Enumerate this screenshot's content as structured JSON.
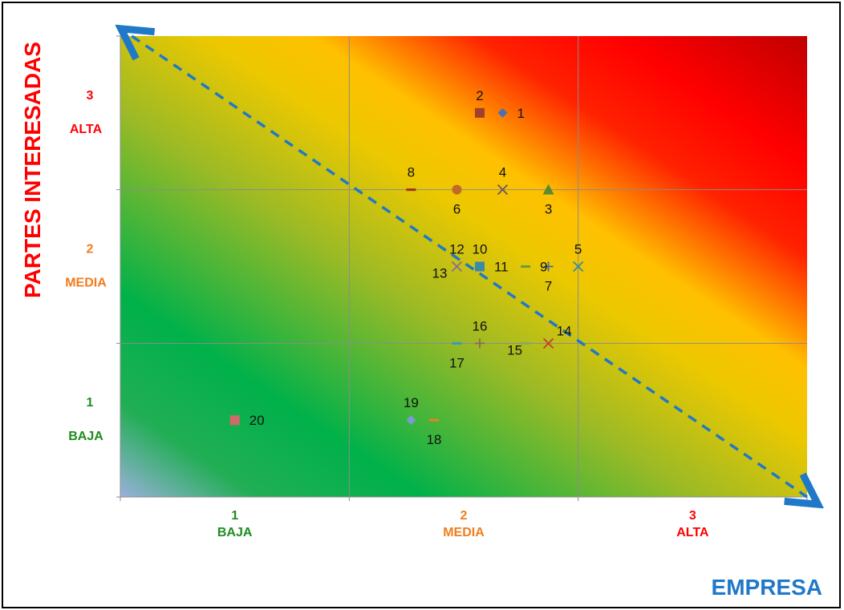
{
  "chart_data": {
    "type": "scatter",
    "title": "",
    "xlabel": "EMPRESA",
    "ylabel": "PARTES INTERESADAS",
    "xlim": [
      0.5,
      3.5
    ],
    "ylim": [
      0.5,
      3.5
    ],
    "grid": true,
    "x_ticks": [
      {
        "value": 1,
        "num": "1",
        "word": "BAJA",
        "color": "#1e8c1e"
      },
      {
        "value": 2,
        "num": "2",
        "word": "MEDIA",
        "color": "#f07d1e"
      },
      {
        "value": 3,
        "num": "3",
        "word": "ALTA",
        "color": "#ff0000"
      }
    ],
    "y_ticks": [
      {
        "value": 1,
        "num": "1",
        "word": "BAJA",
        "color": "#1e8c1e"
      },
      {
        "value": 2,
        "num": "2",
        "word": "MEDIA",
        "color": "#f07d1e"
      },
      {
        "value": 3,
        "num": "3",
        "word": "ALTA",
        "color": "#ff0000"
      }
    ],
    "xlabel_color": "#1f78c8",
    "ylabel_color": "#ff0000",
    "background": "gradient green (low) to red (high)",
    "trend_line": {
      "style": "dashed",
      "color": "#1f78c8",
      "from": [
        0.55,
        3.5
      ],
      "to": [
        3.5,
        0.5
      ]
    },
    "points": [
      {
        "label": "1",
        "x": 2.17,
        "y": 3.0,
        "marker": "diamond",
        "color": "#4a72b0",
        "label_pos": "right"
      },
      {
        "label": "2",
        "x": 2.07,
        "y": 3.0,
        "marker": "square",
        "color": "#a0402a",
        "label_pos": "above"
      },
      {
        "label": "3",
        "x": 2.37,
        "y": 2.5,
        "marker": "triangle",
        "color": "#5a8a30",
        "label_pos": "below"
      },
      {
        "label": "4",
        "x": 2.17,
        "y": 2.5,
        "marker": "x",
        "color": "#6a5a5a",
        "label_pos": "above"
      },
      {
        "label": "5",
        "x": 2.5,
        "y": 2.0,
        "marker": "x",
        "color": "#3a8aa0",
        "label_pos": "above"
      },
      {
        "label": "6",
        "x": 1.97,
        "y": 2.5,
        "marker": "circle",
        "color": "#c06a28",
        "label_pos": "below"
      },
      {
        "label": "7",
        "x": 2.37,
        "y": 2.0,
        "marker": "plus",
        "color": "#4a6aa0",
        "label_pos": "below"
      },
      {
        "label": "8",
        "x": 1.77,
        "y": 2.5,
        "marker": "dash",
        "color": "#a03020",
        "label_pos": "above"
      },
      {
        "label": "9",
        "x": 2.27,
        "y": 2.0,
        "marker": "dash",
        "color": "#6a9a40",
        "label_pos": "right"
      },
      {
        "label": "10",
        "x": 2.07,
        "y": 2.0,
        "marker": "square",
        "color": "#3a8aaa",
        "label_pos": "above"
      },
      {
        "label": "11",
        "x": 2.07,
        "y": 2.0,
        "marker": "none",
        "color": "#3a8aaa",
        "label_pos": "right"
      },
      {
        "label": "12",
        "x": 1.97,
        "y": 2.0,
        "marker": "x",
        "color": "#8a6a9a",
        "label_pos": "above"
      },
      {
        "label": "13",
        "x": 1.97,
        "y": 2.0,
        "marker": "none",
        "color": "#8a6a9a",
        "label_pos": "left"
      },
      {
        "label": "14",
        "x": 2.37,
        "y": 1.5,
        "marker": "x",
        "color": "#c04030",
        "label_pos": "above-right"
      },
      {
        "label": "15",
        "x": 2.27,
        "y": 1.5,
        "marker": "dash",
        "color": "#8aaa60",
        "label_pos": "left-below"
      },
      {
        "label": "16",
        "x": 2.07,
        "y": 1.5,
        "marker": "plus",
        "color": "#8a6a5a",
        "label_pos": "above"
      },
      {
        "label": "17",
        "x": 1.97,
        "y": 1.5,
        "marker": "dash",
        "color": "#3a9aba",
        "label_pos": "below"
      },
      {
        "label": "18",
        "x": 1.87,
        "y": 1.0,
        "marker": "dash",
        "color": "#f07d1e",
        "label_pos": "below"
      },
      {
        "label": "19",
        "x": 1.77,
        "y": 1.0,
        "marker": "diamond",
        "color": "#7a9ad0",
        "label_pos": "above"
      },
      {
        "label": "20",
        "x": 1.0,
        "y": 1.0,
        "marker": "square",
        "color": "#d06a6a",
        "label_pos": "right"
      }
    ]
  }
}
